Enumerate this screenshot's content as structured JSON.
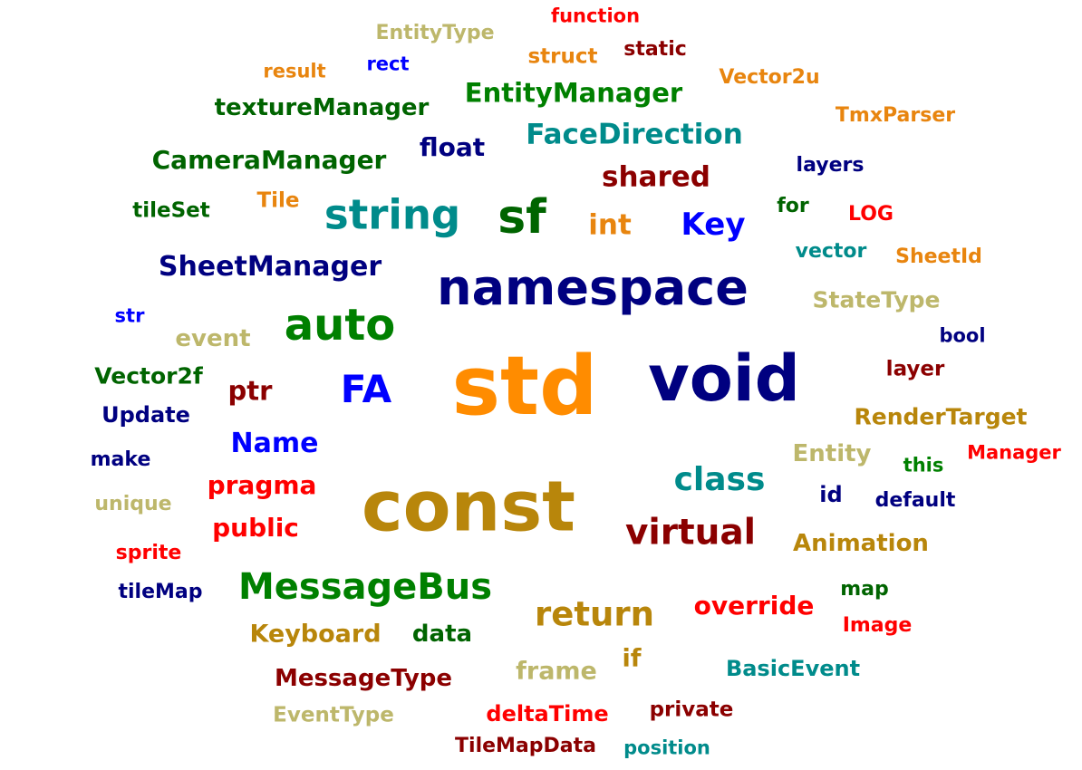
{
  "palette": {
    "orange": "#ff8c00",
    "darkorange": "#e8850f",
    "navy": "#000080",
    "goldenrod": "#b8860b",
    "darkgreen": "#006400",
    "green": "#008000",
    "teal": "#008b8b",
    "khaki": "#bdb76b",
    "maroon": "#8b0000",
    "red": "#ff0000",
    "blue": "#0000ff"
  },
  "words": [
    {
      "text": "function",
      "color": "red"
    },
    {
      "text": "EntityType",
      "color": "khaki"
    },
    {
      "text": "struct",
      "color": "darkorange"
    },
    {
      "text": "static",
      "color": "maroon"
    },
    {
      "text": "result",
      "color": "darkorange"
    },
    {
      "text": "rect",
      "color": "blue"
    },
    {
      "text": "Vector2u",
      "color": "darkorange"
    },
    {
      "text": "EntityManager",
      "color": "green"
    },
    {
      "text": "textureManager",
      "color": "darkgreen"
    },
    {
      "text": "TmxParser",
      "color": "darkorange"
    },
    {
      "text": "FaceDirection",
      "color": "teal"
    },
    {
      "text": "float",
      "color": "navy"
    },
    {
      "text": "CameraManager",
      "color": "darkgreen"
    },
    {
      "text": "layers",
      "color": "navy"
    },
    {
      "text": "shared",
      "color": "maroon"
    },
    {
      "text": "Tile",
      "color": "darkorange"
    },
    {
      "text": "tileSet",
      "color": "darkgreen"
    },
    {
      "text": "string",
      "color": "teal"
    },
    {
      "text": "sf",
      "color": "darkgreen"
    },
    {
      "text": "int",
      "color": "darkorange"
    },
    {
      "text": "Key",
      "color": "blue"
    },
    {
      "text": "for",
      "color": "darkgreen"
    },
    {
      "text": "LOG",
      "color": "red"
    },
    {
      "text": "vector",
      "color": "teal"
    },
    {
      "text": "SheetId",
      "color": "darkorange"
    },
    {
      "text": "SheetManager",
      "color": "navy"
    },
    {
      "text": "namespace",
      "color": "navy"
    },
    {
      "text": "StateType",
      "color": "khaki"
    },
    {
      "text": "str",
      "color": "blue"
    },
    {
      "text": "auto",
      "color": "green"
    },
    {
      "text": "event",
      "color": "khaki"
    },
    {
      "text": "bool",
      "color": "navy"
    },
    {
      "text": "Vector2f",
      "color": "darkgreen"
    },
    {
      "text": "std",
      "color": "orange"
    },
    {
      "text": "void",
      "color": "navy"
    },
    {
      "text": "layer",
      "color": "maroon"
    },
    {
      "text": "ptr",
      "color": "maroon"
    },
    {
      "text": "FA",
      "color": "blue"
    },
    {
      "text": "Update",
      "color": "navy"
    },
    {
      "text": "RenderTarget",
      "color": "goldenrod"
    },
    {
      "text": "Name",
      "color": "blue"
    },
    {
      "text": "Entity",
      "color": "khaki"
    },
    {
      "text": "make",
      "color": "navy"
    },
    {
      "text": "this",
      "color": "green"
    },
    {
      "text": "Manager",
      "color": "red"
    },
    {
      "text": "pragma",
      "color": "red"
    },
    {
      "text": "class",
      "color": "teal"
    },
    {
      "text": "unique",
      "color": "khaki"
    },
    {
      "text": "const",
      "color": "goldenrod"
    },
    {
      "text": "id",
      "color": "navy"
    },
    {
      "text": "default",
      "color": "navy"
    },
    {
      "text": "public",
      "color": "red"
    },
    {
      "text": "virtual",
      "color": "maroon"
    },
    {
      "text": "Animation",
      "color": "goldenrod"
    },
    {
      "text": "sprite",
      "color": "red"
    },
    {
      "text": "tileMap",
      "color": "navy"
    },
    {
      "text": "MessageBus",
      "color": "green"
    },
    {
      "text": "map",
      "color": "darkgreen"
    },
    {
      "text": "return",
      "color": "goldenrod"
    },
    {
      "text": "override",
      "color": "red"
    },
    {
      "text": "Keyboard",
      "color": "goldenrod"
    },
    {
      "text": "data",
      "color": "darkgreen"
    },
    {
      "text": "Image",
      "color": "red"
    },
    {
      "text": "if",
      "color": "goldenrod"
    },
    {
      "text": "frame",
      "color": "khaki"
    },
    {
      "text": "BasicEvent",
      "color": "teal"
    },
    {
      "text": "MessageType",
      "color": "maroon"
    },
    {
      "text": "EventType",
      "color": "khaki"
    },
    {
      "text": "deltaTime",
      "color": "red"
    },
    {
      "text": "private",
      "color": "maroon"
    },
    {
      "text": "TileMapData",
      "color": "maroon"
    },
    {
      "text": "position",
      "color": "teal"
    }
  ]
}
